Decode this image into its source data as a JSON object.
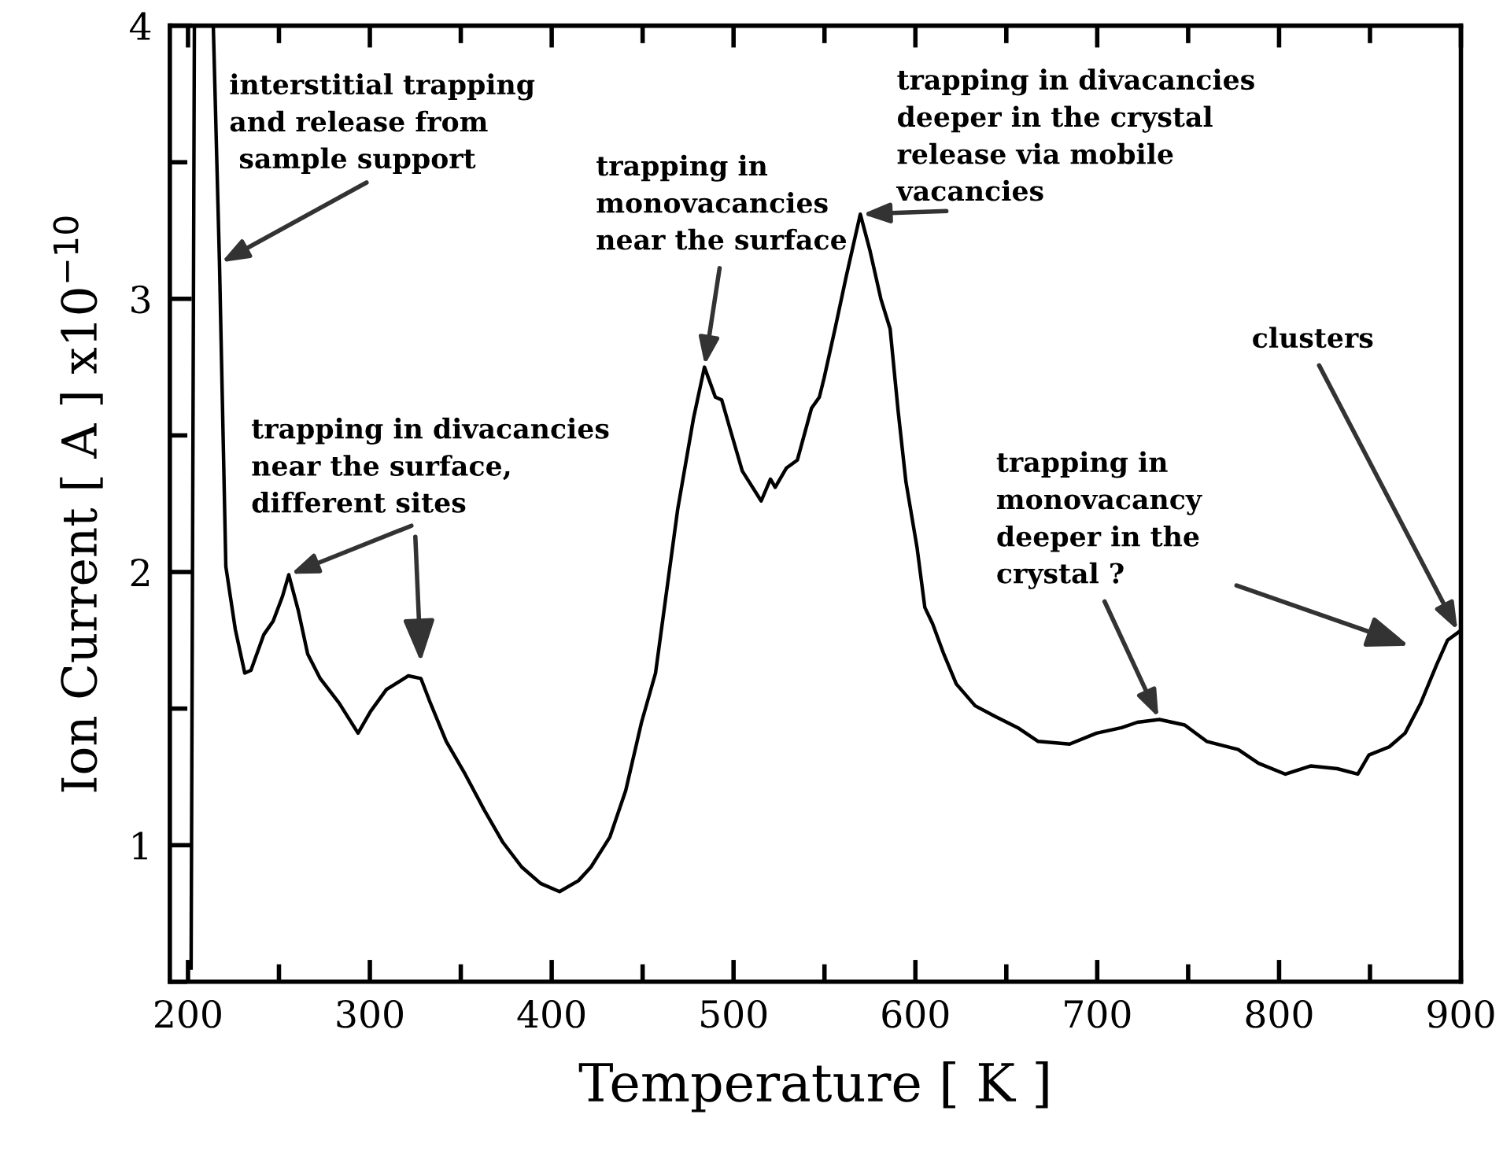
{
  "chart_data": {
    "type": "line",
    "xlabel": "Temperature [ K ]",
    "ylabel": "Ion Current [ A ] x10$^{−10}$",
    "xlim": [
      190,
      900
    ],
    "ylim": [
      0.5,
      4
    ],
    "xticks": [
      200,
      300,
      400,
      500,
      600,
      700,
      800,
      900
    ],
    "yticks": [
      1,
      2,
      3,
      4
    ],
    "grid": false,
    "legend": false,
    "marker": "none",
    "line_style": "solid",
    "series": [
      {
        "color": "#000000",
        "x": [
          201.7,
          203.5,
          213.9,
          217.3,
          220.8,
          226.0,
          231.2,
          234.6,
          241.6,
          246.8,
          251.9,
          255.4,
          260.6,
          265.8,
          272.7,
          283.1,
          293.5,
          300.4,
          309.1,
          321.2,
          328.1,
          333.3,
          342.0,
          352.4,
          362.8,
          373.2,
          383.5,
          393.9,
          404.3,
          414.7,
          421.6,
          432.0,
          440.7,
          449.4,
          457.1,
          469.3,
          477.9,
          484.0,
          490.0,
          493.5,
          497.8,
          504.8,
          515.2,
          520.3,
          522.9,
          529.0,
          535.1,
          542.9,
          547.2,
          549.8,
          555.8,
          561.9,
          569.7,
          574.9,
          581.0,
          586.1,
          590.5,
          594.8,
          600.9,
          605.2,
          609.5,
          615.6,
          622.5,
          632.9,
          644.2,
          656.3,
          667.5,
          684.8,
          699.6,
          713.4,
          722.1,
          734.2,
          748.1,
          760.2,
          777.5,
          788.7,
          803.5,
          817.3,
          832.0,
          843.3,
          849.4,
          860.6,
          869.3,
          877.9,
          886.6,
          892.6,
          898.7
        ],
        "values": [
          0.55,
          4.0,
          4.0,
          3.13,
          2.02,
          1.79,
          1.63,
          1.64,
          1.77,
          1.82,
          1.91,
          1.99,
          1.86,
          1.7,
          1.61,
          1.52,
          1.41,
          1.49,
          1.57,
          1.62,
          1.61,
          1.52,
          1.38,
          1.26,
          1.13,
          1.01,
          0.92,
          0.86,
          0.83,
          0.87,
          0.92,
          1.03,
          1.2,
          1.45,
          1.63,
          2.23,
          2.56,
          2.75,
          2.64,
          2.63,
          2.53,
          2.37,
          2.26,
          2.34,
          2.31,
          2.38,
          2.41,
          2.6,
          2.64,
          2.71,
          2.89,
          3.08,
          3.31,
          3.18,
          3.0,
          2.89,
          2.59,
          2.33,
          2.09,
          1.87,
          1.81,
          1.7,
          1.59,
          1.51,
          1.47,
          1.43,
          1.38,
          1.37,
          1.41,
          1.43,
          1.45,
          1.46,
          1.44,
          1.38,
          1.35,
          1.3,
          1.26,
          1.29,
          1.28,
          1.26,
          1.33,
          1.36,
          1.41,
          1.52,
          1.66,
          1.75,
          1.78
        ]
      }
    ],
    "annotations": [
      {
        "text": "interstitial trapping\nand release from\n sample support",
        "x": 217.3,
        "y": 3.13
      },
      {
        "text": "trapping in divacancies\nnear the surface,\ndifferent sites",
        "x": 255.4,
        "y": 1.99
      },
      {
        "text": "trapping in\nmonovacancies\nnear the surface",
        "x": 484.0,
        "y": 2.75
      },
      {
        "text": "trapping in divacancies\ndeeper in the crystal\nrelease via mobile\nvacancies",
        "x": 569.7,
        "y": 3.31
      },
      {
        "text": "trapping in\nmonovacancy\ndeeper in the\ncrystal ?",
        "x": 734.2,
        "y": 1.46
      },
      {
        "text": "clusters",
        "x": 898.7,
        "y": 1.78
      }
    ]
  }
}
